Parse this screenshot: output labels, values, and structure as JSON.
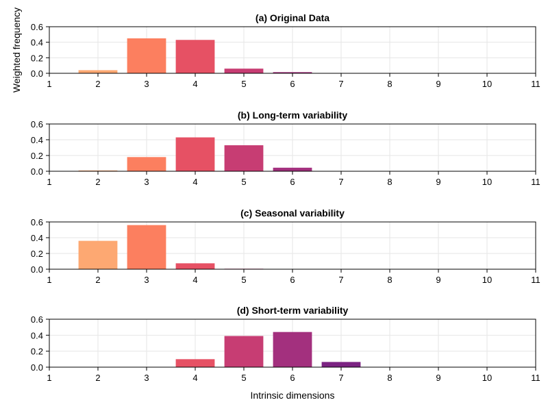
{
  "figure": {
    "ylabel": "Weighted frequency",
    "xlabel": "Intrinsic dimensions"
  },
  "colors": {
    "2": "#FDA872",
    "3": "#FC7F5F",
    "4": "#E65164",
    "5": "#C73D73",
    "6": "#A3307E",
    "7": "#7B2382"
  },
  "chart_data": [
    {
      "type": "bar",
      "title": "(a) Original Data",
      "x": [
        2,
        3,
        4,
        5,
        6,
        7
      ],
      "values": [
        0.04,
        0.45,
        0.43,
        0.06,
        0.015,
        0.002
      ],
      "xlim": [
        1,
        11
      ],
      "ylim": [
        0,
        0.6
      ],
      "xticks": [
        "1",
        "2",
        "3",
        "4",
        "5",
        "6",
        "7",
        "8",
        "9",
        "10",
        "11"
      ],
      "yticks": [
        "0.0",
        "0.2",
        "0.4",
        "0.6"
      ],
      "grid": true
    },
    {
      "type": "bar",
      "title": "(b) Long-term variability",
      "x": [
        2,
        3,
        4,
        5,
        6,
        7
      ],
      "values": [
        0.01,
        0.18,
        0.43,
        0.33,
        0.045,
        0.002
      ],
      "xlim": [
        1,
        11
      ],
      "ylim": [
        0,
        0.6
      ],
      "xticks": [
        "1",
        "2",
        "3",
        "4",
        "5",
        "6",
        "7",
        "8",
        "9",
        "10",
        "11"
      ],
      "yticks": [
        "0.0",
        "0.2",
        "0.4",
        "0.6"
      ],
      "grid": true
    },
    {
      "type": "bar",
      "title": "(c) Seasonal variability",
      "x": [
        2,
        3,
        4,
        5,
        6
      ],
      "values": [
        0.36,
        0.56,
        0.075,
        0.006,
        0.001
      ],
      "xlim": [
        1,
        11
      ],
      "ylim": [
        0,
        0.6
      ],
      "xticks": [
        "1",
        "2",
        "3",
        "4",
        "5",
        "6",
        "7",
        "8",
        "9",
        "10",
        "11"
      ],
      "yticks": [
        "0.0",
        "0.2",
        "0.4",
        "0.6"
      ],
      "grid": true
    },
    {
      "type": "bar",
      "title": "(d) Short-term variability",
      "x": [
        4,
        5,
        6,
        7
      ],
      "values": [
        0.1,
        0.39,
        0.44,
        0.065
      ],
      "xlim": [
        1,
        11
      ],
      "ylim": [
        0,
        0.6
      ],
      "xticks": [
        "1",
        "2",
        "3",
        "4",
        "5",
        "6",
        "7",
        "8",
        "9",
        "10",
        "11"
      ],
      "yticks": [
        "0.0",
        "0.2",
        "0.4",
        "0.6"
      ],
      "grid": true
    }
  ]
}
